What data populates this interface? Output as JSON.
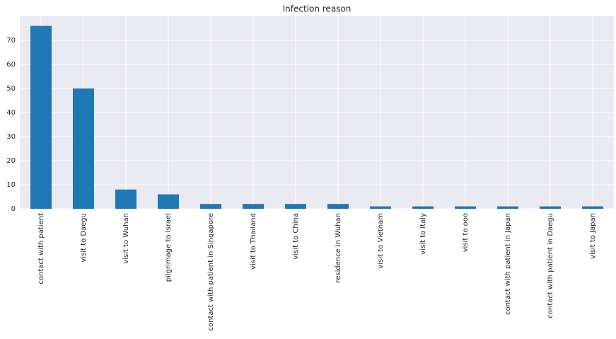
{
  "chart_data": {
    "type": "bar",
    "title": "Infection reason",
    "categories": [
      "contact with patient",
      "visit to Daegu",
      "visit to Wuhan",
      "pilgrimage to Israel",
      "contact with patient in Singapore",
      "visit to Thailand",
      "visit to China",
      "residence in Wuhan",
      "visit to Vietnam",
      "visit to Italy",
      "visit to ooo",
      "contact with patient in Japan",
      "contact with patient in Daegu",
      "visit to Japan"
    ],
    "values": [
      76,
      50,
      8,
      6,
      2,
      2,
      2,
      2,
      1,
      1,
      1,
      1,
      1,
      1
    ],
    "color": "#1f77b4",
    "ylim": [
      0,
      80
    ],
    "yticks": [
      0,
      10,
      20,
      30,
      40,
      50,
      60,
      70
    ],
    "grid": true
  }
}
